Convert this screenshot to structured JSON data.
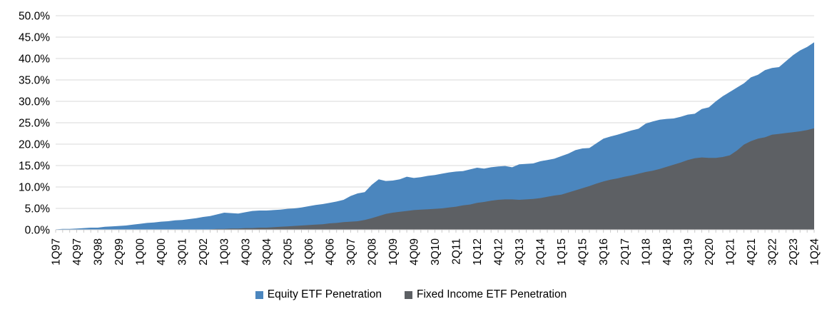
{
  "chart_data": {
    "type": "area",
    "mode": "overlapping",
    "title": "",
    "ylabel": "",
    "xlabel": "",
    "ylim": [
      0,
      50
    ],
    "y_tick_step": 5,
    "y_tick_labels": [
      "0.0%",
      "5.0%",
      "10.0%",
      "15.0%",
      "20.0%",
      "25.0%",
      "30.0%",
      "35.0%",
      "40.0%",
      "45.0%",
      "50.0%"
    ],
    "x_tick_labels": [
      "1Q97",
      "4Q97",
      "3Q98",
      "2Q99",
      "1Q00",
      "4Q00",
      "3Q01",
      "2Q02",
      "1Q03",
      "4Q03",
      "3Q04",
      "2Q05",
      "1Q06",
      "4Q06",
      "3Q07",
      "2Q08",
      "1Q09",
      "4Q09",
      "3Q10",
      "2Q11",
      "1Q12",
      "4Q12",
      "3Q13",
      "2Q14",
      "1Q15",
      "4Q15",
      "3Q16",
      "2Q17",
      "1Q18",
      "4Q18",
      "3Q19",
      "2Q20",
      "1Q21",
      "4Q21",
      "3Q22",
      "2Q23",
      "1Q24"
    ],
    "x_label_every_n_points": 3,
    "n_points": 109,
    "grid": true,
    "legend_position": "bottom",
    "series": [
      {
        "name": "Equity ETF Penetration",
        "color": "#4B86BE",
        "values": [
          0.1,
          0.2,
          0.2,
          0.3,
          0.4,
          0.5,
          0.5,
          0.7,
          0.8,
          0.9,
          1.0,
          1.2,
          1.4,
          1.6,
          1.7,
          1.9,
          2.0,
          2.2,
          2.3,
          2.5,
          2.7,
          3.0,
          3.2,
          3.6,
          4.0,
          3.9,
          3.8,
          4.1,
          4.4,
          4.5,
          4.5,
          4.6,
          4.7,
          4.9,
          5.0,
          5.2,
          5.5,
          5.8,
          6.0,
          6.3,
          6.6,
          7.0,
          7.9,
          8.5,
          8.8,
          10.5,
          11.8,
          11.4,
          11.5,
          11.8,
          12.4,
          12.1,
          12.3,
          12.6,
          12.8,
          13.1,
          13.4,
          13.6,
          13.7,
          14.1,
          14.5,
          14.3,
          14.6,
          14.8,
          14.9,
          14.6,
          15.3,
          15.4,
          15.5,
          16.0,
          16.3,
          16.6,
          17.2,
          17.8,
          18.6,
          19.0,
          19.1,
          20.2,
          21.3,
          21.8,
          22.2,
          22.7,
          23.2,
          23.6,
          24.8,
          25.3,
          25.7,
          25.9,
          26.0,
          26.4,
          26.9,
          27.1,
          28.2,
          28.6,
          30.0,
          31.2,
          32.2,
          33.2,
          34.2,
          35.6,
          36.2,
          37.3,
          37.8,
          38.0,
          39.4,
          40.8,
          41.9,
          42.7,
          43.8
        ]
      },
      {
        "name": "Fixed Income ETF Penetration",
        "color": "#5D6064",
        "values": [
          0,
          0,
          0,
          0,
          0,
          0,
          0,
          0,
          0,
          0,
          0,
          0,
          0,
          0,
          0,
          0,
          0,
          0,
          0,
          0,
          0,
          0,
          0.1,
          0.2,
          0.2,
          0.3,
          0.3,
          0.4,
          0.4,
          0.5,
          0.5,
          0.6,
          0.7,
          0.8,
          0.9,
          1.0,
          1.1,
          1.2,
          1.3,
          1.5,
          1.6,
          1.8,
          1.9,
          2.0,
          2.3,
          2.7,
          3.2,
          3.7,
          4.0,
          4.2,
          4.4,
          4.6,
          4.7,
          4.8,
          4.9,
          5.0,
          5.2,
          5.4,
          5.7,
          5.9,
          6.3,
          6.5,
          6.8,
          7.0,
          7.1,
          7.1,
          7.0,
          7.1,
          7.2,
          7.4,
          7.7,
          8.0,
          8.2,
          8.7,
          9.2,
          9.7,
          10.2,
          10.8,
          11.3,
          11.7,
          12.0,
          12.4,
          12.7,
          13.1,
          13.5,
          13.8,
          14.2,
          14.7,
          15.2,
          15.7,
          16.3,
          16.7,
          16.9,
          16.8,
          16.8,
          17.0,
          17.4,
          18.5,
          19.9,
          20.7,
          21.3,
          21.6,
          22.2,
          22.4,
          22.6,
          22.8,
          23.0,
          23.3,
          23.7
        ]
      }
    ],
    "colors": {
      "gridline": "#D9D9D9",
      "axis_line": "#D9D9D9",
      "tick_mark": "#C9C9C9",
      "label_text": "#000000"
    }
  }
}
